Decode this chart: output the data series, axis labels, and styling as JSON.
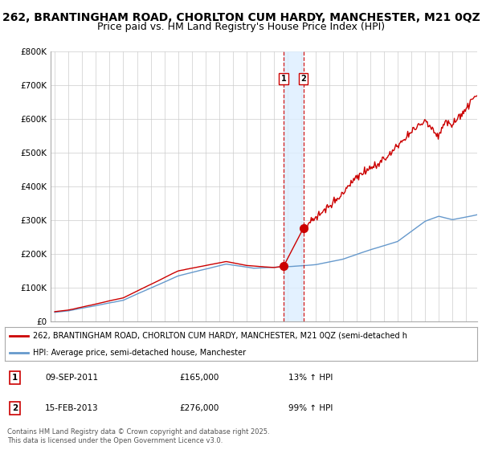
{
  "title1": "262, BRANTINGHAM ROAD, CHORLTON CUM HARDY, MANCHESTER, M21 0QZ",
  "title2": "Price paid vs. HM Land Registry's House Price Index (HPI)",
  "ylim": [
    0,
    800000
  ],
  "yticks": [
    0,
    100000,
    200000,
    300000,
    400000,
    500000,
    600000,
    700000,
    800000
  ],
  "ytick_labels": [
    "£0",
    "£100K",
    "£200K",
    "£300K",
    "£400K",
    "£500K",
    "£600K",
    "£700K",
    "£800K"
  ],
  "legend1": "262, BRANTINGHAM ROAD, CHORLTON CUM HARDY, MANCHESTER, M21 0QZ (semi-detached h",
  "legend2": "HPI: Average price, semi-detached house, Manchester",
  "legend1_color": "#cc0000",
  "legend2_color": "#6699cc",
  "annotation1_date": "09-SEP-2011",
  "annotation1_price": "£165,000",
  "annotation1_hpi": "13% ↑ HPI",
  "annotation2_date": "15-FEB-2013",
  "annotation2_price": "£276,000",
  "annotation2_hpi": "99% ↑ HPI",
  "vline1_x": 2011.69,
  "vline2_x": 2013.12,
  "sale1_y": 165000,
  "sale2_y": 276000,
  "shade_color": "#ddeeff",
  "footer": "Contains HM Land Registry data © Crown copyright and database right 2025.\nThis data is licensed under the Open Government Licence v3.0.",
  "title_fontsize": 10,
  "title2_fontsize": 9,
  "background_color": "#ffffff",
  "grid_color": "#cccccc",
  "xlim_start": 1995.0,
  "xlim_end": 2025.8
}
